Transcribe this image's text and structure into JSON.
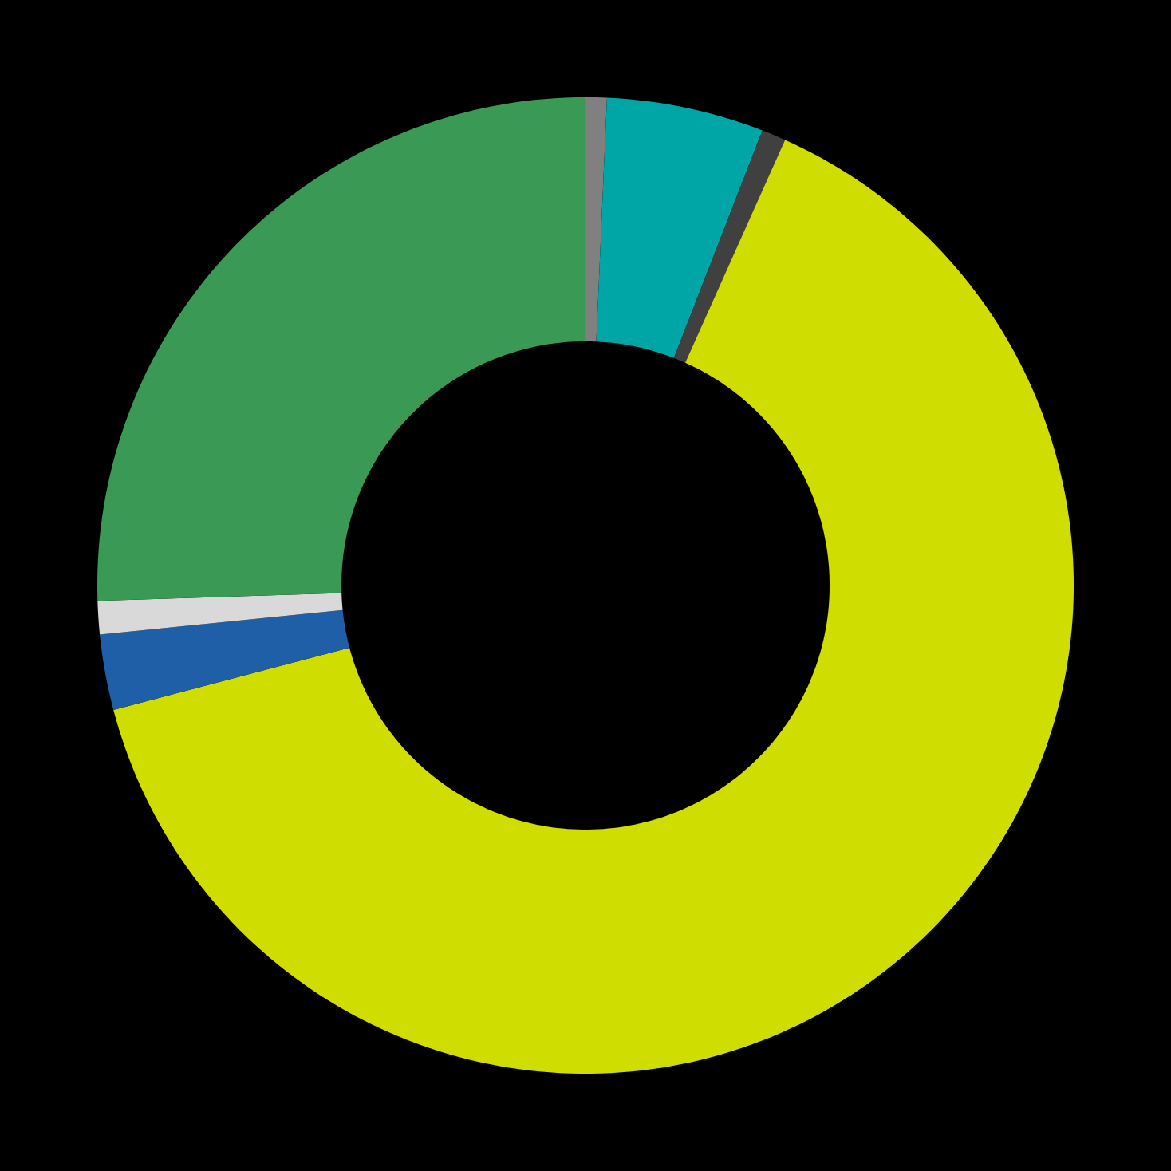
{
  "chart_data": {
    "type": "donut",
    "categories": [
      null,
      null,
      null,
      null,
      null,
      null,
      null
    ],
    "values": [
      0.7,
      5.2,
      0.8,
      64.2,
      2.5,
      1.1,
      25.5
    ],
    "colors": [
      "#808080",
      "#00a6a6",
      "#404040",
      "#cfdd00",
      "#1f5fa8",
      "#d9d9d9",
      "#3a9a55"
    ]
  }
}
